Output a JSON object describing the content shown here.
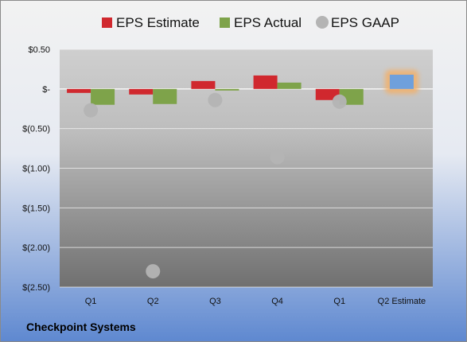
{
  "company": "Checkpoint Systems",
  "colors": {
    "estimate": "#d0282e",
    "actual": "#7ea34a",
    "gaap": "#b4b4b4",
    "forecast_bar": "#6fa0dc",
    "forecast_glow": "#f2b06a",
    "background_top": "#f2f2f2",
    "background_bottom": "#5e88d0"
  },
  "chart_data": {
    "type": "bar",
    "categories": [
      "Q1",
      "Q2",
      "Q3",
      "Q4",
      "Q1",
      "Q2 Estimate"
    ],
    "series": [
      {
        "name": "EPS Estimate",
        "values": [
          -0.05,
          -0.07,
          0.1,
          0.17,
          -0.14,
          0.18
        ]
      },
      {
        "name": "EPS Actual",
        "values": [
          -0.2,
          -0.19,
          -0.02,
          0.08,
          -0.2,
          null
        ]
      },
      {
        "name": "EPS GAAP",
        "kind": "scatter",
        "values": [
          -0.27,
          -2.3,
          -0.14,
          -0.86,
          -0.16,
          null
        ]
      }
    ],
    "y_ticks": [
      0.5,
      0,
      -0.5,
      -1.0,
      -1.5,
      -2.0,
      -2.5
    ],
    "y_tick_labels": [
      "$0.50",
      "$-",
      "$(0.50)",
      "$(1.00)",
      "$(1.50)",
      "$(2.00)",
      "$(2.50)"
    ],
    "ylim": [
      -2.5,
      0.5
    ],
    "grid": true,
    "legend_position": "top",
    "highlight_category": "Q2 Estimate"
  }
}
